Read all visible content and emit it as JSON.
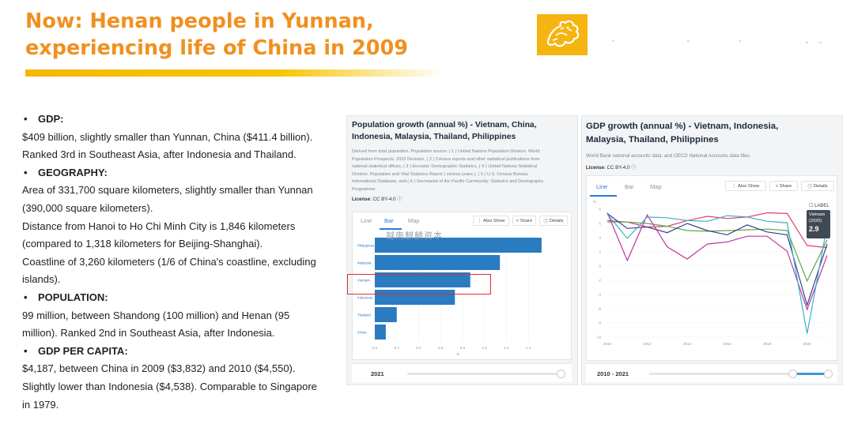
{
  "slide": {
    "title_line1": "Now: Henan people in Yunnan,",
    "title_line2": "experiencing life of China in 2009"
  },
  "bullets": [
    {
      "head": "GDP:",
      "lines": [
        "$409 billion, slightly smaller than Yunnan, China ($411.4 billion).",
        "Ranked 3rd in Southeast Asia, after Indonesia and Thailand."
      ]
    },
    {
      "head": "GEOGRAPHY:",
      "lines": [
        "Area of 331,700 square kilometers, slightly smaller than Yunnan",
        "(390,000 square kilometers).",
        "Distance from Hanoi to Ho Chi Minh City is 1,846 kilometers",
        "(compared to 1,318 kilometers for Beijing-Shanghai).",
        "Coastline of 3,260 kilometers (1/6 of China's coastline, excluding",
        "islands)."
      ]
    },
    {
      "head": "POPULATION:",
      "lines": [
        "99 million, between Shandong (100 million) and Henan (95",
        "million). Ranked 2nd in Southeast Asia, after Indonesia."
      ]
    },
    {
      "head": "GDP PER CAPITA:",
      "lines": [
        "$4,187, between China in 2009 ($3,832) and 2010 ($4,550).",
        "Slightly lower than Indonesia ($4,538). Comparable to Singapore",
        "in 1979."
      ]
    }
  ],
  "watermark": "越南麒麟资本",
  "left_panel": {
    "title_line1": "Population growth (annual %) - Vietnam, China,",
    "title_line2": "Indonesia, Malaysia, Thailand, Philippines",
    "source_lines": [
      "Derived from total population. Population source: ( 1 ) United Nations Population Division. World",
      "Population Prospects: 2022 Revision, ( 2 ) Census reports and other statistical publications from",
      "national statistical offices, ( 3 ) Eurostat: Demographic Statistics, ( 4 ) United Nations Statistical",
      "Division. Population and Vital Statistics Reprot ( various years ), ( 5 ) U.S. Census Bureau:",
      "International Database, and ( 6 ) Secretariat of the Pacific Community: Statistics and Demography",
      "Programme."
    ],
    "license_label": "License",
    "license_value": ": CC BY-4.0",
    "tabs": [
      "Line",
      "Bar",
      "Map"
    ],
    "active_tab": "Bar",
    "buttons": {
      "also_show": "Also Show",
      "share": "Share",
      "details": "Details"
    },
    "year": "2021"
  },
  "right_panel": {
    "title_line1": "GDP growth (annual %) - Vietnam, Indonesia,",
    "title_line2": "Malaysia, Thailand, Philippines",
    "source_lines": [
      "World Bank national accounts data, and OECD National Accounts data files."
    ],
    "license_label": "License",
    "license_value": ": CC BY-4.0",
    "tabs": [
      "Line",
      "Bar",
      "Map"
    ],
    "active_tab": "Line",
    "buttons": {
      "also_show": "Also Show",
      "share": "Share",
      "details": "Details"
    },
    "label_toggle": "LABEL",
    "tooltip": {
      "country": "Vietnam",
      "year": "(2020)",
      "value": "2.9"
    },
    "year_range": "2010 - 2021"
  },
  "chart_data": [
    {
      "type": "bar",
      "orientation": "horizontal",
      "categories": [
        "Philippines",
        "Malaysia",
        "Vietnam",
        "Indonesia",
        "Thailand",
        "China"
      ],
      "values": [
        1.52,
        1.14,
        0.87,
        0.73,
        0.2,
        0.1
      ],
      "bar_color": "#2a7bc0",
      "xticks": [
        "0.0",
        "0.2",
        "0.4",
        "0.6",
        "0.8",
        "1.0",
        "1.2",
        "1.4"
      ],
      "xlim": [
        0,
        1.6
      ],
      "xlabel": "%",
      "highlight": "Vietnam",
      "highlight_color": "#e0312c"
    },
    {
      "type": "line",
      "x": [
        2010,
        2011,
        2012,
        2013,
        2014,
        2015,
        2016,
        2017,
        2018,
        2019,
        2020,
        2021
      ],
      "xticks": [
        "2010",
        "2012",
        "2014",
        "2016",
        "2018",
        "2020"
      ],
      "yticks": [
        "8",
        "6",
        "4",
        "2",
        "0",
        "-2",
        "-4",
        "-6",
        "-8",
        "-10"
      ],
      "ylim": [
        -10,
        8
      ],
      "series": [
        {
          "values": [
            6.4,
            6.2,
            5.5,
            5.6,
            6.4,
            7.0,
            6.7,
            6.9,
            7.5,
            7.4,
            2.9,
            2.6
          ],
          "color": "#e23b78"
        },
        {
          "values": [
            6.2,
            6.2,
            6.0,
            5.6,
            5.0,
            4.9,
            5.0,
            5.1,
            5.2,
            5.0,
            -2.1,
            3.7
          ],
          "color": "#5fa84a"
        },
        {
          "values": [
            7.4,
            5.3,
            5.5,
            4.7,
            6.0,
            5.0,
            4.4,
            5.8,
            4.8,
            4.4,
            -5.5,
            3.1
          ],
          "color": "#3a3f8f"
        },
        {
          "values": [
            7.5,
            0.8,
            7.2,
            2.7,
            1.0,
            3.1,
            3.4,
            4.2,
            4.2,
            2.1,
            -6.1,
            1.5
          ],
          "color": "#c2369e"
        },
        {
          "values": [
            7.3,
            3.9,
            6.9,
            6.8,
            6.4,
            6.3,
            7.1,
            6.9,
            6.3,
            6.1,
            -9.5,
            5.7
          ],
          "color": "#3ab0c8"
        }
      ]
    }
  ]
}
